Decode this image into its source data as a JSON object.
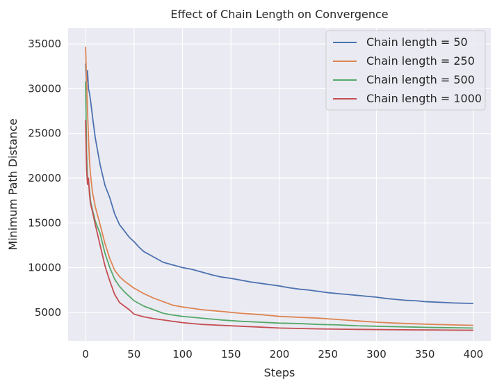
{
  "chart_data": {
    "type": "line",
    "title": "Effect of Chain Length on Convergence",
    "xlabel": "Steps",
    "ylabel": "Minimum Path Distance",
    "xlim": [
      -18,
      418
    ],
    "ylim": [
      1800,
      36800
    ],
    "xticks": [
      0,
      50,
      100,
      150,
      200,
      250,
      300,
      350,
      400
    ],
    "yticks": [
      5000,
      10000,
      15000,
      20000,
      25000,
      30000,
      35000
    ],
    "grid": true,
    "legend_position": "top-right",
    "series": [
      {
        "name": "Chain length = 50",
        "color": "#4c72b0",
        "points": [
          [
            0,
            32800
          ],
          [
            1,
            30500
          ],
          [
            2,
            32000
          ],
          [
            3,
            30000
          ],
          [
            4,
            29500
          ],
          [
            5,
            28800
          ],
          [
            7,
            27000
          ],
          [
            10,
            24500
          ],
          [
            15,
            21500
          ],
          [
            20,
            19200
          ],
          [
            25,
            17800
          ],
          [
            30,
            16000
          ],
          [
            35,
            14800
          ],
          [
            40,
            14100
          ],
          [
            45,
            13400
          ],
          [
            50,
            12900
          ],
          [
            55,
            12300
          ],
          [
            60,
            11800
          ],
          [
            70,
            11200
          ],
          [
            80,
            10600
          ],
          [
            90,
            10300
          ],
          [
            100,
            10000
          ],
          [
            110,
            9800
          ],
          [
            120,
            9500
          ],
          [
            130,
            9200
          ],
          [
            140,
            8950
          ],
          [
            150,
            8800
          ],
          [
            160,
            8600
          ],
          [
            170,
            8400
          ],
          [
            180,
            8250
          ],
          [
            190,
            8100
          ],
          [
            200,
            7950
          ],
          [
            210,
            7750
          ],
          [
            220,
            7600
          ],
          [
            230,
            7500
          ],
          [
            240,
            7350
          ],
          [
            250,
            7200
          ],
          [
            260,
            7100
          ],
          [
            270,
            7000
          ],
          [
            280,
            6900
          ],
          [
            290,
            6800
          ],
          [
            300,
            6700
          ],
          [
            310,
            6550
          ],
          [
            320,
            6450
          ],
          [
            330,
            6350
          ],
          [
            340,
            6300
          ],
          [
            350,
            6200
          ],
          [
            360,
            6150
          ],
          [
            370,
            6100
          ],
          [
            380,
            6050
          ],
          [
            390,
            6020
          ],
          [
            400,
            6000
          ]
        ]
      },
      {
        "name": "Chain length = 250",
        "color": "#dd8452",
        "points": [
          [
            0,
            34700
          ],
          [
            1,
            31000
          ],
          [
            2,
            27500
          ],
          [
            3,
            24500
          ],
          [
            4,
            22000
          ],
          [
            5,
            20500
          ],
          [
            7,
            18500
          ],
          [
            10,
            16800
          ],
          [
            15,
            14800
          ],
          [
            20,
            12700
          ],
          [
            25,
            11000
          ],
          [
            30,
            9700
          ],
          [
            35,
            9000
          ],
          [
            40,
            8500
          ],
          [
            45,
            8100
          ],
          [
            50,
            7700
          ],
          [
            60,
            7100
          ],
          [
            70,
            6600
          ],
          [
            80,
            6200
          ],
          [
            90,
            5800
          ],
          [
            100,
            5600
          ],
          [
            120,
            5300
          ],
          [
            140,
            5100
          ],
          [
            160,
            4900
          ],
          [
            180,
            4750
          ],
          [
            200,
            4550
          ],
          [
            220,
            4450
          ],
          [
            240,
            4350
          ],
          [
            260,
            4200
          ],
          [
            280,
            4050
          ],
          [
            300,
            3900
          ],
          [
            320,
            3800
          ],
          [
            340,
            3720
          ],
          [
            360,
            3650
          ],
          [
            380,
            3600
          ],
          [
            400,
            3550
          ]
        ]
      },
      {
        "name": "Chain length = 500",
        "color": "#55a868",
        "points": [
          [
            0,
            30800
          ],
          [
            1,
            23000
          ],
          [
            2,
            20000
          ],
          [
            3,
            19500
          ],
          [
            4,
            18800
          ],
          [
            5,
            17500
          ],
          [
            7,
            16500
          ],
          [
            10,
            15200
          ],
          [
            15,
            13800
          ],
          [
            20,
            11600
          ],
          [
            25,
            10000
          ],
          [
            30,
            8700
          ],
          [
            35,
            7900
          ],
          [
            40,
            7300
          ],
          [
            45,
            6800
          ],
          [
            50,
            6300
          ],
          [
            60,
            5700
          ],
          [
            70,
            5300
          ],
          [
            80,
            4900
          ],
          [
            90,
            4700
          ],
          [
            100,
            4550
          ],
          [
            120,
            4350
          ],
          [
            140,
            4150
          ],
          [
            160,
            4000
          ],
          [
            180,
            3900
          ],
          [
            200,
            3800
          ],
          [
            220,
            3750
          ],
          [
            240,
            3650
          ],
          [
            260,
            3600
          ],
          [
            280,
            3500
          ],
          [
            300,
            3450
          ],
          [
            320,
            3400
          ],
          [
            340,
            3350
          ],
          [
            360,
            3300
          ],
          [
            380,
            3280
          ],
          [
            400,
            3250
          ]
        ]
      },
      {
        "name": "Chain length = 1000",
        "color": "#c44e52",
        "points": [
          [
            0,
            26500
          ],
          [
            1,
            21000
          ],
          [
            2,
            19300
          ],
          [
            3,
            20000
          ],
          [
            4,
            18200
          ],
          [
            5,
            17200
          ],
          [
            7,
            16300
          ],
          [
            10,
            14800
          ],
          [
            15,
            12500
          ],
          [
            20,
            10200
          ],
          [
            25,
            8500
          ],
          [
            30,
            7000
          ],
          [
            35,
            6100
          ],
          [
            40,
            5700
          ],
          [
            45,
            5300
          ],
          [
            50,
            4800
          ],
          [
            60,
            4500
          ],
          [
            70,
            4300
          ],
          [
            80,
            4150
          ],
          [
            90,
            4000
          ],
          [
            100,
            3850
          ],
          [
            120,
            3650
          ],
          [
            140,
            3550
          ],
          [
            160,
            3450
          ],
          [
            180,
            3350
          ],
          [
            200,
            3250
          ],
          [
            220,
            3200
          ],
          [
            240,
            3150
          ],
          [
            260,
            3120
          ],
          [
            280,
            3100
          ],
          [
            300,
            3080
          ],
          [
            320,
            3060
          ],
          [
            340,
            3040
          ],
          [
            360,
            3030
          ],
          [
            380,
            3010
          ],
          [
            400,
            3000
          ]
        ]
      }
    ]
  }
}
